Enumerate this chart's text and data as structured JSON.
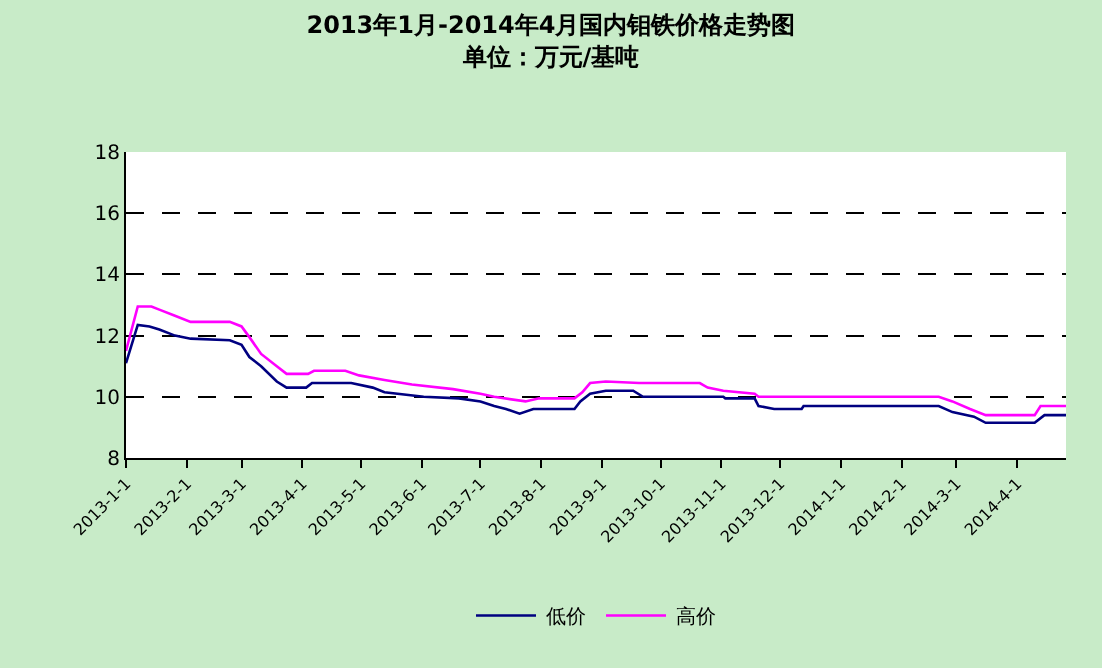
{
  "chart_data": {
    "type": "line",
    "title": "2013年1月-2014年4月国内钼铁价格走势图",
    "subtitle": "单位：万元/基吨",
    "xlim": [
      "2013-01-01",
      "2014-04-26"
    ],
    "xticks": [
      {
        "value": "2013-01-01",
        "label": "2013-1-1"
      },
      {
        "value": "2013-02-01",
        "label": "2013-2-1"
      },
      {
        "value": "2013-03-01",
        "label": "2013-3-1"
      },
      {
        "value": "2013-04-01",
        "label": "2013-4-1"
      },
      {
        "value": "2013-05-01",
        "label": "2013-5-1"
      },
      {
        "value": "2013-06-01",
        "label": "2013-6-1"
      },
      {
        "value": "2013-07-01",
        "label": "2013-7-1"
      },
      {
        "value": "2013-08-01",
        "label": "2013-8-1"
      },
      {
        "value": "2013-09-01",
        "label": "2013-9-1"
      },
      {
        "value": "2013-10-01",
        "label": "2013-10-1"
      },
      {
        "value": "2013-11-01",
        "label": "2013-11-1"
      },
      {
        "value": "2013-12-01",
        "label": "2013-12-1"
      },
      {
        "value": "2014-01-01",
        "label": "2014-1-1"
      },
      {
        "value": "2014-02-01",
        "label": "2014-2-1"
      },
      {
        "value": "2014-03-01",
        "label": "2014-3-1"
      },
      {
        "value": "2014-04-01",
        "label": "2014-4-1"
      }
    ],
    "ylim": [
      8,
      18
    ],
    "yticks": [
      8,
      10,
      12,
      14,
      16,
      18
    ],
    "grid": "y",
    "legend": "bottom",
    "marker": "none",
    "line_style": "solid",
    "series": [
      {
        "name": "低价",
        "color": "#000080",
        "x": [
          "2013-01-01",
          "2013-01-07",
          "2013-01-13",
          "2013-01-18",
          "2013-01-26",
          "2013-02-03",
          "2013-02-23",
          "2013-03-01",
          "2013-03-05",
          "2013-03-11",
          "2013-03-19",
          "2013-03-24",
          "2013-04-03",
          "2013-04-06",
          "2013-04-26",
          "2013-05-07",
          "2013-05-13",
          "2013-06-02",
          "2013-06-20",
          "2013-07-01",
          "2013-07-08",
          "2013-07-14",
          "2013-07-21",
          "2013-07-28",
          "2013-08-10",
          "2013-08-18",
          "2013-08-21",
          "2013-08-26",
          "2013-09-03",
          "2013-09-17",
          "2013-09-22",
          "2013-11-02",
          "2013-11-03",
          "2013-11-18",
          "2013-11-20",
          "2013-11-28",
          "2013-12-12",
          "2013-12-13",
          "2014-02-20",
          "2014-02-27",
          "2014-03-10",
          "2014-03-16",
          "2014-04-10",
          "2014-04-15",
          "2014-04-26"
        ],
        "values": [
          11.1,
          12.35,
          12.3,
          12.2,
          12.0,
          11.9,
          11.85,
          11.7,
          11.3,
          11.0,
          10.5,
          10.3,
          10.3,
          10.45,
          10.45,
          10.3,
          10.15,
          10.0,
          9.95,
          9.85,
          9.7,
          9.6,
          9.45,
          9.6,
          9.6,
          9.6,
          9.85,
          10.1,
          10.2,
          10.2,
          10.0,
          10.0,
          9.95,
          9.95,
          9.7,
          9.6,
          9.6,
          9.7,
          9.7,
          9.5,
          9.35,
          9.15,
          9.15,
          9.4,
          9.4
        ]
      },
      {
        "name": "高价",
        "color": "#ff00ff",
        "x": [
          "2013-01-01",
          "2013-01-07",
          "2013-01-14",
          "2013-01-18",
          "2013-01-26",
          "2013-02-03",
          "2013-02-23",
          "2013-03-01",
          "2013-03-05",
          "2013-03-11",
          "2013-03-19",
          "2013-03-24",
          "2013-04-04",
          "2013-04-07",
          "2013-04-23",
          "2013-04-30",
          "2013-05-13",
          "2013-05-27",
          "2013-06-17",
          "2013-07-01",
          "2013-07-08",
          "2013-07-24",
          "2013-07-31",
          "2013-08-18",
          "2013-08-22",
          "2013-08-26",
          "2013-09-03",
          "2013-09-20",
          "2013-10-21",
          "2013-10-25",
          "2013-11-02",
          "2013-11-18",
          "2013-11-20",
          "2014-02-20",
          "2014-02-27",
          "2014-03-08",
          "2014-03-16",
          "2014-04-10",
          "2014-04-13",
          "2014-04-26"
        ],
        "values": [
          11.5,
          12.95,
          12.95,
          12.85,
          12.65,
          12.45,
          12.45,
          12.3,
          11.95,
          11.4,
          11.0,
          10.75,
          10.75,
          10.85,
          10.85,
          10.7,
          10.55,
          10.4,
          10.25,
          10.1,
          10.0,
          9.85,
          9.95,
          9.95,
          10.15,
          10.45,
          10.5,
          10.45,
          10.45,
          10.3,
          10.2,
          10.1,
          10.0,
          10.0,
          9.85,
          9.6,
          9.4,
          9.4,
          9.7,
          9.7
        ]
      }
    ]
  }
}
